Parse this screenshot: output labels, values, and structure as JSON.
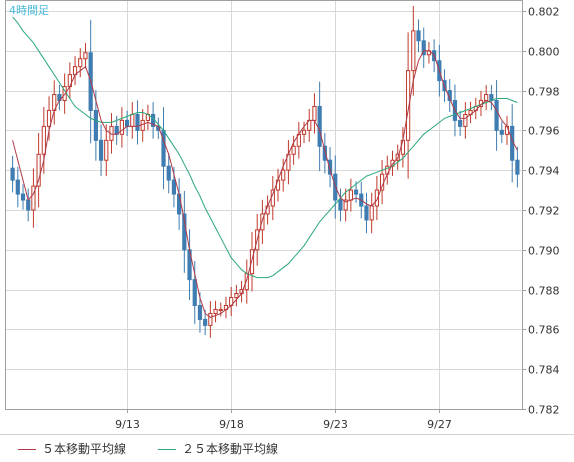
{
  "chart_data": {
    "type": "candlestick",
    "timeframe_label": "4時間足",
    "ylim": [
      0.782,
      0.8025
    ],
    "y_ticks": [
      "0.802",
      "0.800",
      "0.798",
      "0.796",
      "0.794",
      "0.792",
      "0.790",
      "0.788",
      "0.786",
      "0.784",
      "0.782"
    ],
    "x_ticks": [
      {
        "index": 22,
        "label": "9/13"
      },
      {
        "index": 42,
        "label": "9/18"
      },
      {
        "index": 62,
        "label": "9/23"
      },
      {
        "index": 82,
        "label": "9/27"
      }
    ],
    "colors": {
      "up": "#c0392b",
      "down": "#3e7cb1",
      "ma5": "#b03a48",
      "ma25": "#2aa87b",
      "grid": "#d8d8d8",
      "frame": "#a0a0a0"
    },
    "series": [
      {
        "name": "5本移動平均線",
        "color": "#b03a48"
      },
      {
        "name": "25本移動平均線",
        "color": "#2aa87b"
      }
    ],
    "close": [
      0.7935,
      0.7928,
      0.7925,
      0.792,
      0.7932,
      0.7948,
      0.7962,
      0.797,
      0.7978,
      0.7975,
      0.7982,
      0.7988,
      0.7992,
      0.7996,
      0.7999,
      0.797,
      0.7955,
      0.7945,
      0.7955,
      0.7962,
      0.7958,
      0.7965,
      0.7962,
      0.7968,
      0.796,
      0.7965,
      0.7968,
      0.7962,
      0.796,
      0.7942,
      0.7935,
      0.7928,
      0.7918,
      0.79,
      0.7885,
      0.7872,
      0.7865,
      0.7862,
      0.7868,
      0.787,
      0.787,
      0.7872,
      0.7876,
      0.7878,
      0.788,
      0.7888,
      0.79,
      0.791,
      0.7918,
      0.7922,
      0.793,
      0.7935,
      0.794,
      0.7948,
      0.7952,
      0.7958,
      0.796,
      0.7965,
      0.7972,
      0.7952,
      0.7945,
      0.7938,
      0.7925,
      0.792,
      0.7925,
      0.793,
      0.7928,
      0.7922,
      0.7915,
      0.7922,
      0.793,
      0.7938,
      0.7942,
      0.7945,
      0.7948,
      0.7955,
      0.799,
      0.801,
      0.8005,
      0.7998,
      0.8,
      0.7995,
      0.7985,
      0.798,
      0.7975,
      0.7965,
      0.7962,
      0.7968,
      0.797,
      0.7972,
      0.7975,
      0.7978,
      0.7975,
      0.796,
      0.7958,
      0.7962,
      0.7945,
      0.7938
    ],
    "ma5": [
      0.7955,
      0.7945,
      0.7935,
      0.7925,
      0.7928,
      0.7935,
      0.7945,
      0.796,
      0.797,
      0.7975,
      0.7978,
      0.7982,
      0.7988,
      0.799,
      0.7992,
      0.7985,
      0.7975,
      0.7965,
      0.796,
      0.7958,
      0.7958,
      0.796,
      0.7962,
      0.7962,
      0.7962,
      0.7963,
      0.7964,
      0.7963,
      0.7962,
      0.7955,
      0.7948,
      0.7938,
      0.7928,
      0.7915,
      0.79,
      0.7888,
      0.7876,
      0.7868,
      0.7866,
      0.7867,
      0.7868,
      0.787,
      0.7872,
      0.7875,
      0.7878,
      0.7885,
      0.7895,
      0.7905,
      0.7915,
      0.7922,
      0.7928,
      0.7935,
      0.7942,
      0.7948,
      0.7954,
      0.7958,
      0.7962,
      0.7965,
      0.7965,
      0.796,
      0.795,
      0.794,
      0.7932,
      0.7926,
      0.7924,
      0.7925,
      0.7926,
      0.7925,
      0.7923,
      0.7922,
      0.7925,
      0.7932,
      0.7938,
      0.7943,
      0.7946,
      0.7955,
      0.797,
      0.7985,
      0.7995,
      0.8,
      0.8,
      0.7998,
      0.799,
      0.7982,
      0.7976,
      0.797,
      0.7966,
      0.7966,
      0.7968,
      0.797,
      0.7973,
      0.7975,
      0.7974,
      0.797,
      0.7965,
      0.7962,
      0.7955,
      0.795
    ],
    "ma25": [
      0.8017,
      0.8014,
      0.801,
      0.8007,
      0.8004,
      0.8,
      0.7996,
      0.7992,
      0.7988,
      0.7984,
      0.798,
      0.7976,
      0.7972,
      0.797,
      0.7968,
      0.7966,
      0.7965,
      0.7964,
      0.7964,
      0.7964,
      0.7965,
      0.7966,
      0.7967,
      0.7968,
      0.7969,
      0.7969,
      0.7968,
      0.7966,
      0.7963,
      0.796,
      0.7956,
      0.7952,
      0.7948,
      0.7943,
      0.7938,
      0.7932,
      0.7927,
      0.7921,
      0.7916,
      0.7911,
      0.7906,
      0.7901,
      0.7896,
      0.7893,
      0.789,
      0.7888,
      0.7887,
      0.7886,
      0.7886,
      0.7886,
      0.7887,
      0.7889,
      0.7891,
      0.7893,
      0.7896,
      0.7899,
      0.7902,
      0.7906,
      0.791,
      0.7914,
      0.7917,
      0.792,
      0.7923,
      0.7926,
      0.7929,
      0.7931,
      0.7933,
      0.7935,
      0.7937,
      0.7938,
      0.7939,
      0.794,
      0.7941,
      0.7942,
      0.7944,
      0.7946,
      0.7949,
      0.7952,
      0.7955,
      0.7958,
      0.796,
      0.7962,
      0.7964,
      0.7966,
      0.7967,
      0.7968,
      0.7969,
      0.797,
      0.7971,
      0.7972,
      0.7973,
      0.7974,
      0.7975,
      0.7976,
      0.7976,
      0.7976,
      0.7975,
      0.7974
    ]
  },
  "legend": {
    "ma5_label": "５本移動平均線",
    "ma25_label": "２５本移動平均線"
  }
}
